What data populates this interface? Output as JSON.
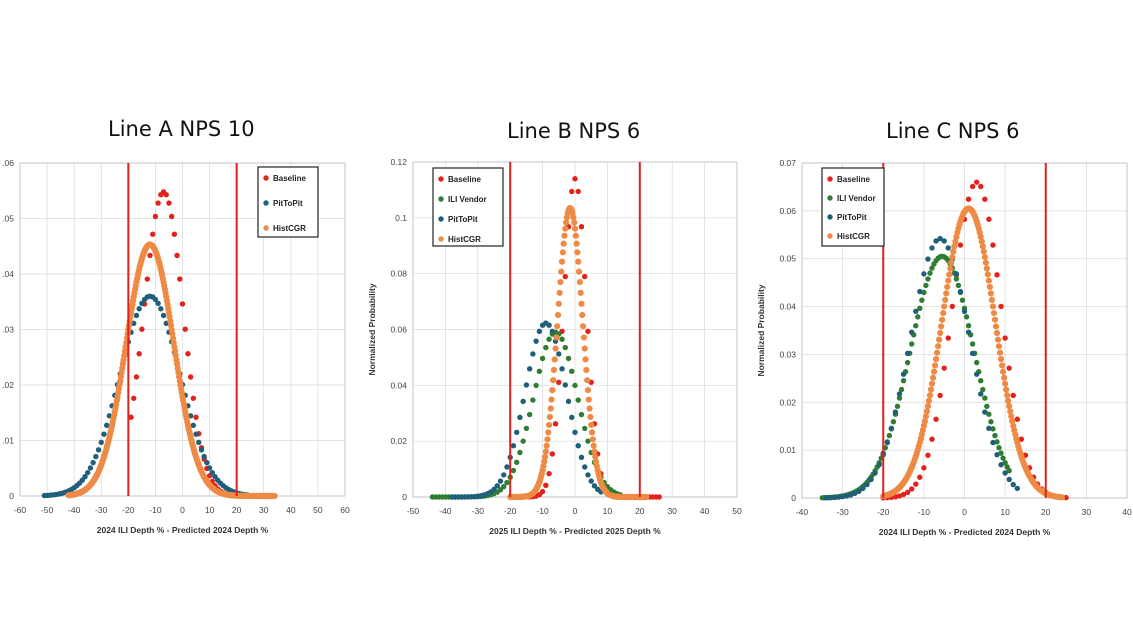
{
  "titles": [
    "Line A NPS 10",
    "Line B NPS 6",
    "Line C NPS 6"
  ],
  "colors": {
    "Baseline": "#e3211d",
    "ILI Vendor": "#2e7d32",
    "PitToPit": "#1f5f7a",
    "HistCGR": "#ef8a45",
    "threshold": "#e0201c",
    "grid": "#d9d9d9"
  },
  "chart_data": [
    {
      "type": "scatter",
      "title": "Line A NPS 10",
      "xlabel": "2024 ILI Depth % - Predicted 2024 Depth %",
      "ylabel": "",
      "xlim": [
        -60,
        60
      ],
      "ylim": [
        0,
        0.06
      ],
      "xticks": [
        -60,
        -50,
        -40,
        -30,
        -20,
        -10,
        0,
        10,
        20,
        30,
        40,
        50,
        60
      ],
      "yticks": [
        0,
        0.01,
        0.02,
        0.03,
        0.04,
        0.05,
        0.06
      ],
      "ytick_labels": [
        "0",
        ".01",
        ".02",
        ".03",
        ".04",
        ".05",
        ".06"
      ],
      "grid": true,
      "legend_position": "top-right",
      "vlines": [
        -20,
        20
      ],
      "series": [
        {
          "name": "Baseline",
          "dist": {
            "mean": -7,
            "sd": 7.3,
            "peak": 0.0548
          },
          "range": [
            -19,
            26
          ],
          "step": 1
        },
        {
          "name": "PitToPit",
          "dist": {
            "mean": -12,
            "sd": 11.1,
            "peak": 0.036
          },
          "range": [
            -51,
            24
          ],
          "step": 1
        },
        {
          "name": "HistCGR",
          "dist": {
            "mean": -12,
            "sd": 8.8,
            "peak": 0.0453
          },
          "range": [
            -42,
            34
          ],
          "step": 0.25
        }
      ]
    },
    {
      "type": "scatter",
      "title": "Line B NPS 6",
      "xlabel": "2025 ILI Depth % - Predicted 2025 Depth %",
      "ylabel": "Normalized Probability",
      "xlim": [
        -50,
        50
      ],
      "ylim": [
        0,
        0.12
      ],
      "xticks": [
        -50,
        -40,
        -30,
        -20,
        -10,
        0,
        10,
        20,
        30,
        40,
        50
      ],
      "yticks": [
        0,
        0.02,
        0.04,
        0.06,
        0.08,
        0.1,
        0.12
      ],
      "ytick_labels": [
        "0",
        "0.02",
        "0.04",
        "0.06",
        "0.08",
        "0.1",
        "0.12"
      ],
      "grid": true,
      "legend_position": "top-left",
      "vlines": [
        -20,
        20
      ],
      "series": [
        {
          "name": "Baseline",
          "dist": {
            "mean": 0,
            "sd": 3.5,
            "peak": 0.114
          },
          "range": [
            -14,
            26
          ],
          "step": 1
        },
        {
          "name": "ILI Vendor",
          "dist": {
            "mean": -6,
            "sd": 6.8,
            "peak": 0.059
          },
          "range": [
            -44,
            14
          ],
          "step": 1
        },
        {
          "name": "PitToPit",
          "dist": {
            "mean": -9,
            "sd": 6.4,
            "peak": 0.0623
          },
          "range": [
            -38,
            8
          ],
          "step": 1
        },
        {
          "name": "HistCGR",
          "dist": {
            "mean": -1.5,
            "sd": 3.9,
            "peak": 0.1035
          },
          "range": [
            -20,
            22
          ],
          "step": 0.25
        }
      ]
    },
    {
      "type": "scatter",
      "title": "Line C NPS 6",
      "xlabel": "2024 ILI Depth % - Predicted 2024 Depth %",
      "ylabel": "Normalized Probability",
      "xlim": [
        -40,
        40
      ],
      "ylim": [
        0,
        0.07
      ],
      "xticks": [
        -40,
        -30,
        -20,
        -10,
        0,
        10,
        20,
        30,
        40
      ],
      "yticks": [
        0,
        0.01,
        0.02,
        0.03,
        0.04,
        0.05,
        0.06,
        0.07
      ],
      "ytick_labels": [
        "0",
        "0.01",
        "0.02",
        "0.03",
        "0.04",
        "0.05",
        "0.06",
        "0.07"
      ],
      "grid": true,
      "legend_position": "top-left",
      "vlines": [
        -20,
        20
      ],
      "series": [
        {
          "name": "Baseline",
          "dist": {
            "mean": 3,
            "sd": 6.0,
            "peak": 0.066
          },
          "range": [
            -20,
            25
          ],
          "step": 1
        },
        {
          "name": "ILI Vendor",
          "dist": {
            "mean": -5.5,
            "sd": 7.9,
            "peak": 0.0505
          },
          "range": [
            -35,
            11
          ],
          "step": 0.5
        },
        {
          "name": "PitToPit",
          "dist": {
            "mean": -6,
            "sd": 7.4,
            "peak": 0.0542
          },
          "range": [
            -34,
            13
          ],
          "step": 1
        },
        {
          "name": "HistCGR",
          "dist": {
            "mean": 1,
            "sd": 6.6,
            "peak": 0.0605
          },
          "range": [
            -20,
            24
          ],
          "step": 0.25
        }
      ]
    }
  ]
}
